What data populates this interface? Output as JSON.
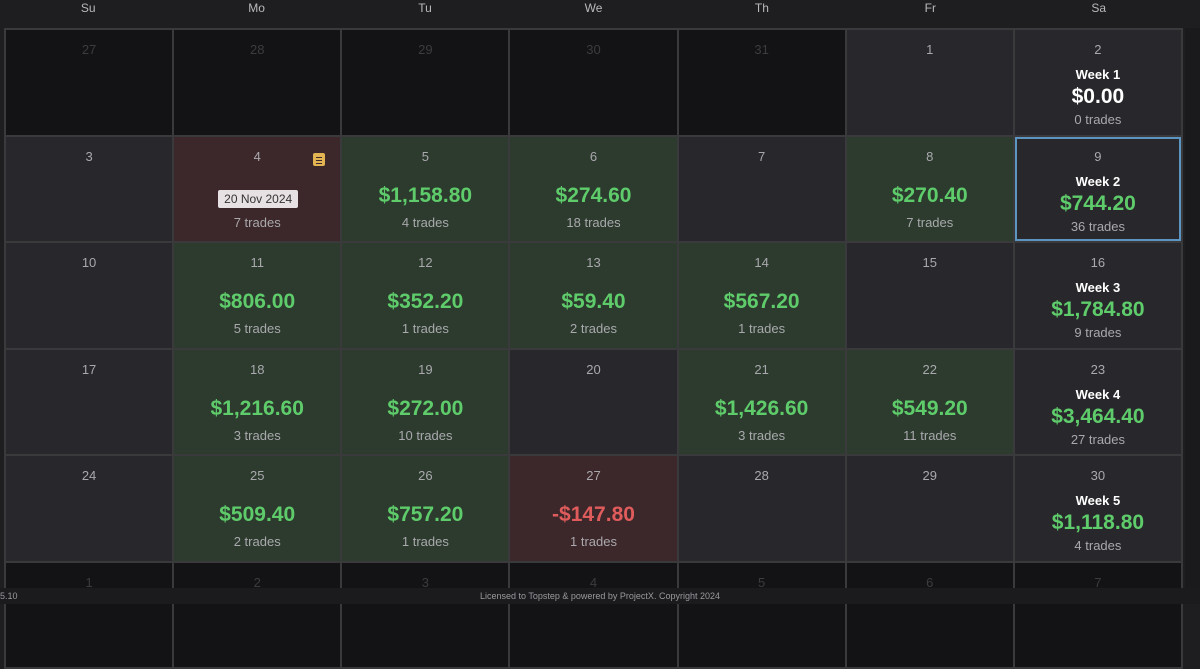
{
  "weekdays": [
    "Su",
    "Mo",
    "Tu",
    "We",
    "Th",
    "Fr",
    "Sa"
  ],
  "tooltip": "20 Nov 2024",
  "footer": {
    "version": "5.10",
    "license": "Licensed to Topstep & powered by ProjectX. Copyright 2024"
  },
  "colors": {
    "profit": "#5fcc6b",
    "loss": "#e05c5c",
    "selected_border": "#5d95c2"
  },
  "cells": [
    {
      "day": "27",
      "other": true
    },
    {
      "day": "28",
      "other": true
    },
    {
      "day": "29",
      "other": true
    },
    {
      "day": "30",
      "other": true
    },
    {
      "day": "31",
      "other": true
    },
    {
      "day": "1"
    },
    {
      "day": "2",
      "week": "Week 1",
      "pnl": "$0.00",
      "trades": "0 trades",
      "zero": true
    },
    {
      "day": "3"
    },
    {
      "day": "4",
      "state": "red",
      "trades": "7 trades",
      "note": true,
      "tooltip": true
    },
    {
      "day": "5",
      "state": "green",
      "pnl": "$1,158.80",
      "trades": "4 trades"
    },
    {
      "day": "6",
      "state": "green",
      "pnl": "$274.60",
      "trades": "18 trades"
    },
    {
      "day": "7"
    },
    {
      "day": "8",
      "state": "green",
      "pnl": "$270.40",
      "trades": "7 trades"
    },
    {
      "day": "9",
      "week": "Week 2",
      "pnl": "$744.20",
      "trades": "36 trades",
      "selected": true
    },
    {
      "day": "10"
    },
    {
      "day": "11",
      "state": "green",
      "pnl": "$806.00",
      "trades": "5 trades"
    },
    {
      "day": "12",
      "state": "green",
      "pnl": "$352.20",
      "trades": "1 trades"
    },
    {
      "day": "13",
      "state": "green",
      "pnl": "$59.40",
      "trades": "2 trades"
    },
    {
      "day": "14",
      "state": "green",
      "pnl": "$567.20",
      "trades": "1 trades"
    },
    {
      "day": "15"
    },
    {
      "day": "16",
      "week": "Week 3",
      "pnl": "$1,784.80",
      "trades": "9 trades"
    },
    {
      "day": "17"
    },
    {
      "day": "18",
      "state": "green",
      "pnl": "$1,216.60",
      "trades": "3 trades"
    },
    {
      "day": "19",
      "state": "green",
      "pnl": "$272.00",
      "trades": "10 trades"
    },
    {
      "day": "20"
    },
    {
      "day": "21",
      "state": "green",
      "pnl": "$1,426.60",
      "trades": "3 trades"
    },
    {
      "day": "22",
      "state": "green",
      "pnl": "$549.20",
      "trades": "11 trades"
    },
    {
      "day": "23",
      "week": "Week 4",
      "pnl": "$3,464.40",
      "trades": "27 trades"
    },
    {
      "day": "24"
    },
    {
      "day": "25",
      "state": "green",
      "pnl": "$509.40",
      "trades": "2 trades"
    },
    {
      "day": "26",
      "state": "green",
      "pnl": "$757.20",
      "trades": "1 trades"
    },
    {
      "day": "27",
      "state": "red",
      "pnl": "-$147.80",
      "trades": "1 trades",
      "neg": true
    },
    {
      "day": "28"
    },
    {
      "day": "29"
    },
    {
      "day": "30",
      "week": "Week 5",
      "pnl": "$1,118.80",
      "trades": "4 trades"
    },
    {
      "day": "1",
      "other": true
    },
    {
      "day": "2",
      "other": true
    },
    {
      "day": "3",
      "other": true
    },
    {
      "day": "4",
      "other": true
    },
    {
      "day": "5",
      "other": true
    },
    {
      "day": "6",
      "other": true
    },
    {
      "day": "7",
      "other": true
    }
  ]
}
